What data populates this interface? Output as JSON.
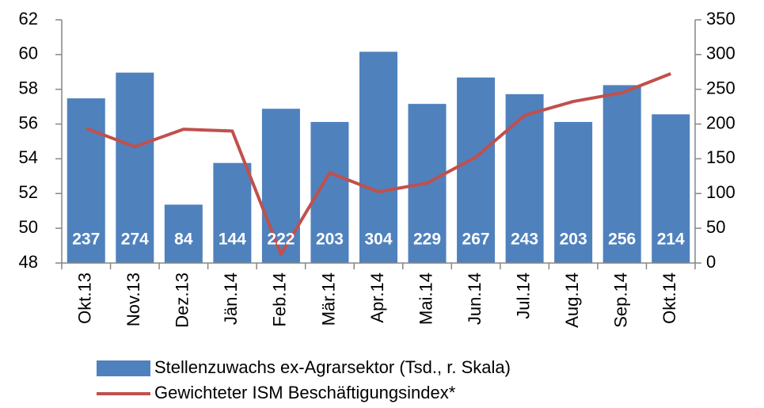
{
  "chart_data": {
    "type": "combo",
    "categories": [
      "Okt.13",
      "Nov.13",
      "Dez.13",
      "Jän.14",
      "Feb.14",
      "Mär.14",
      "Apr.14",
      "Mai.14",
      "Jun.14",
      "Jul.14",
      "Aug.14",
      "Sep.14",
      "Okt.14"
    ],
    "series": [
      {
        "name": "Stellenzuwachs ex-Agrarsektor (Tsd., r. Skala)",
        "type": "bar",
        "axis": "y2",
        "color": "#4f81bd",
        "values": [
          237,
          274,
          84,
          144,
          222,
          203,
          304,
          229,
          267,
          243,
          203,
          256,
          214
        ]
      },
      {
        "name": "Gewichteter ISM Beschäftigungsindex*",
        "type": "line",
        "color": "#c0504d",
        "values": [
          55.75,
          54.7,
          55.7,
          55.6,
          48.5,
          53.2,
          52.1,
          52.6,
          54.1,
          56.5,
          57.3,
          57.8,
          58.9
        ]
      }
    ],
    "ylim": [
      48,
      62
    ],
    "yticks": [
      48,
      50,
      52,
      54,
      56,
      58,
      60,
      62
    ],
    "y2lim": [
      0,
      350
    ],
    "y2ticks": [
      0,
      50,
      100,
      150,
      200,
      250,
      300,
      350
    ],
    "data_labels": true
  }
}
